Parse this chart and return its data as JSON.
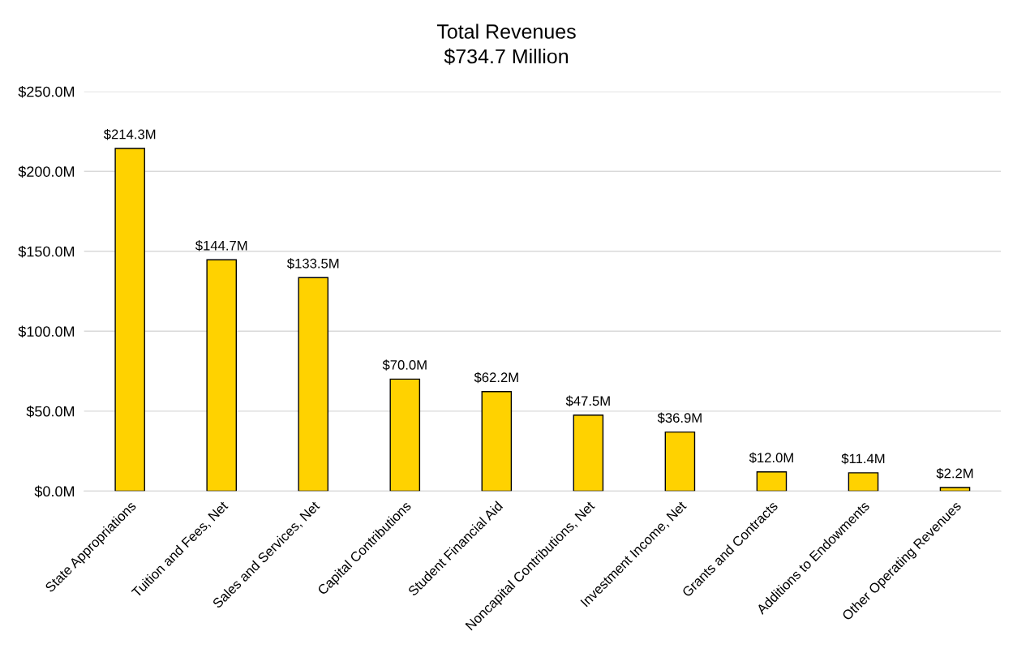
{
  "chart_data": {
    "type": "bar",
    "title": "Total Revenues\n$734.7 Million",
    "categories": [
      "State Appropriations",
      "Tuition and Fees, Net",
      "Sales and Services, Net",
      "Capital Contributions",
      "Student Financial Aid",
      "Noncapital Contributions, Net",
      "Investment Income, Net",
      "Grants and Contracts",
      "Additions to Endowments",
      "Other Operating Revenues"
    ],
    "values": [
      214.3,
      144.7,
      133.5,
      70.0,
      62.2,
      47.5,
      36.9,
      12.0,
      11.4,
      2.2
    ],
    "value_labels": [
      "$214.3M",
      "$144.7M",
      "$133.5M",
      "$70.0M",
      "$62.2M",
      "$47.5M",
      "$36.9M",
      "$12.0M",
      "$11.4M",
      "$2.2M"
    ],
    "color": "#ffd200",
    "ylim": [
      0,
      250
    ],
    "yticks": [
      {
        "value": 0,
        "label": "$0.0M"
      },
      {
        "value": 50,
        "label": "$50.0M"
      },
      {
        "value": 100,
        "label": "$100.0M"
      },
      {
        "value": 150,
        "label": "$150.0M"
      },
      {
        "value": 200,
        "label": "$200.0M"
      },
      {
        "value": 250,
        "label": "$250.0M"
      }
    ],
    "grid": "y",
    "legend": false
  }
}
